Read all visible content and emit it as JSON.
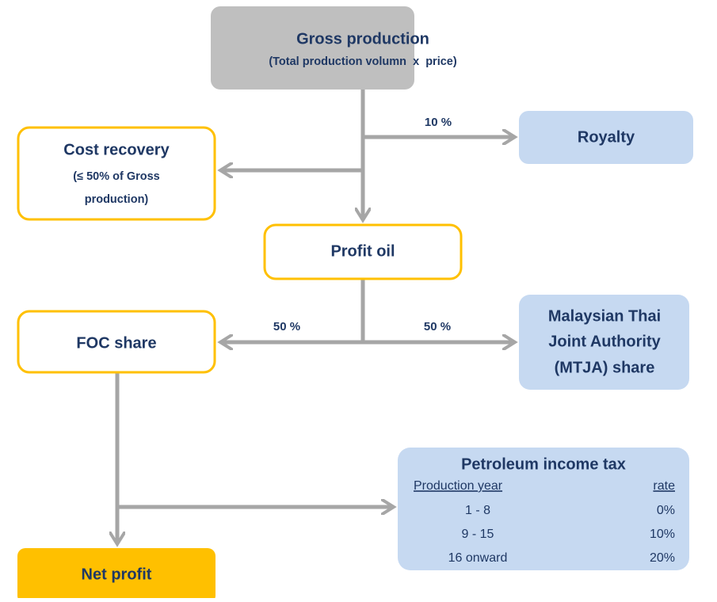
{
  "gross_production": {
    "title": "Gross production",
    "subtitle": "(Total production volumn  x  price)"
  },
  "royalty": {
    "label": "Royalty",
    "share": "10 %"
  },
  "cost_recovery": {
    "title": "Cost recovery",
    "lines": [
      "(≤ 50% of Gross",
      "production)"
    ]
  },
  "profit_oil": {
    "label": "Profit oil"
  },
  "foc_share": {
    "label": "FOC share",
    "share": "50 %"
  },
  "mtja_share": {
    "lines": [
      "Malaysian Thai",
      "Joint Authority",
      "(MTJA) share"
    ],
    "share": "50 %"
  },
  "petroleum_income_tax": {
    "title": "Petroleum income tax",
    "header": [
      "Production year",
      "rate"
    ],
    "rows": [
      [
        "1 - 8",
        "0%"
      ],
      [
        "9 - 15",
        "10%"
      ],
      [
        "16 onward",
        "20%"
      ]
    ]
  },
  "net_profit": {
    "label": "Net profit"
  }
}
